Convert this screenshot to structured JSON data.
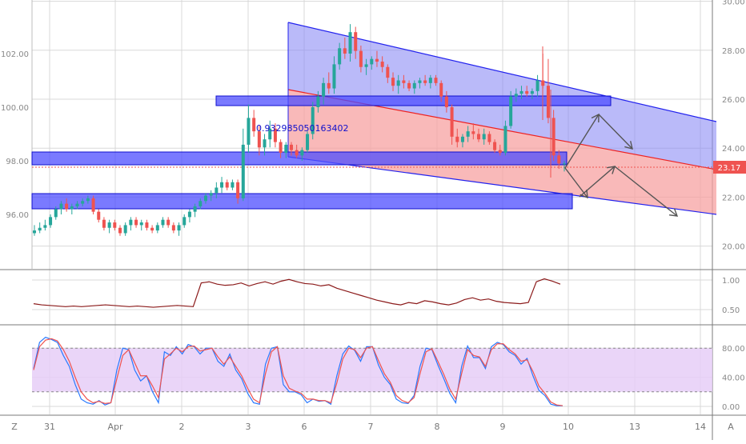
{
  "chart_data": [
    {
      "type": "candlestick",
      "title": "",
      "x_tick_labels": [
        "31",
        "Apr",
        "2",
        "3",
        "6",
        "7",
        "8",
        "9",
        "10",
        "13",
        "14"
      ],
      "left_axis": {
        "ticks": [
          "96.00",
          "98.00",
          "100.00",
          "102.00"
        ],
        "range": [
          94.0,
          104.0
        ]
      },
      "right_axis": {
        "ticks": [
          "20.00",
          "22.00",
          "24.00",
          "26.00",
          "28.00",
          "30.00"
        ],
        "range": [
          19.6,
          30.0
        ]
      },
      "last_price_label": "23.17",
      "annotation_text": "0.932985050163402",
      "colors": {
        "up": "#26a69a",
        "down": "#ef5350",
        "channel_upper": "#8c8cf5",
        "channel_lower": "#f7a1a1",
        "zone": "#4d4dff",
        "arrow": "#555555"
      },
      "series_ohlc": [
        [
          95.3,
          95.2,
          95.6,
          95.4
        ],
        [
          95.4,
          95.3,
          95.7,
          95.5
        ],
        [
          95.5,
          95.4,
          95.8,
          95.6
        ],
        [
          95.6,
          95.5,
          96.0,
          95.9
        ],
        [
          95.9,
          95.8,
          96.3,
          96.2
        ],
        [
          96.2,
          96.0,
          96.5,
          96.4
        ],
        [
          96.4,
          96.1,
          96.6,
          96.2
        ],
        [
          96.2,
          96.0,
          96.4,
          96.3
        ],
        [
          96.3,
          96.2,
          96.5,
          96.4
        ],
        [
          96.4,
          96.3,
          96.6,
          96.5
        ],
        [
          96.5,
          96.4,
          96.7,
          96.6
        ],
        [
          96.6,
          96.0,
          96.7,
          96.1
        ],
        [
          96.1,
          95.7,
          96.2,
          95.8
        ],
        [
          95.8,
          95.4,
          95.9,
          95.5
        ],
        [
          95.5,
          95.3,
          95.8,
          95.7
        ],
        [
          95.7,
          95.4,
          95.8,
          95.5
        ],
        [
          95.5,
          95.2,
          95.6,
          95.3
        ],
        [
          95.3,
          95.2,
          95.7,
          95.6
        ],
        [
          95.6,
          95.4,
          95.9,
          95.8
        ],
        [
          95.8,
          95.5,
          95.9,
          95.6
        ],
        [
          95.6,
          95.4,
          95.8,
          95.7
        ],
        [
          95.7,
          95.4,
          95.8,
          95.5
        ],
        [
          95.5,
          95.3,
          95.6,
          95.4
        ],
        [
          95.4,
          95.3,
          95.7,
          95.6
        ],
        [
          95.6,
          95.5,
          95.9,
          95.8
        ],
        [
          95.8,
          95.5,
          95.9,
          95.6
        ],
        [
          95.6,
          95.3,
          95.7,
          95.4
        ],
        [
          95.4,
          95.2,
          95.7,
          95.6
        ],
        [
          95.6,
          95.5,
          96.0,
          95.9
        ],
        [
          95.9,
          95.7,
          96.2,
          96.1
        ],
        [
          96.1,
          95.9,
          96.4,
          96.3
        ],
        [
          96.3,
          96.2,
          96.6,
          96.5
        ],
        [
          96.5,
          96.4,
          96.8,
          96.7
        ],
        [
          96.7,
          96.5,
          96.9,
          96.8
        ],
        [
          96.8,
          96.6,
          97.2,
          97.0
        ],
        [
          97.0,
          96.8,
          97.4,
          97.2
        ],
        [
          97.2,
          96.9,
          97.3,
          97.0
        ],
        [
          97.0,
          96.9,
          97.3,
          97.2
        ],
        [
          97.2,
          96.4,
          97.3,
          96.6
        ],
        [
          96.6,
          96.5,
          99.2,
          98.6
        ],
        [
          98.6,
          98.3,
          100.1,
          99.6
        ],
        [
          99.6,
          98.9,
          99.9,
          99.1
        ],
        [
          99.1,
          98.2,
          99.3,
          98.5
        ],
        [
          98.5,
          98.2,
          99.0,
          98.8
        ],
        [
          98.8,
          98.5,
          99.5,
          99.2
        ],
        [
          99.2,
          98.5,
          99.4,
          98.7
        ],
        [
          98.7,
          98.1,
          98.8,
          98.3
        ],
        [
          98.3,
          98.1,
          98.7,
          98.6
        ],
        [
          98.6,
          98.2,
          98.7,
          98.4
        ],
        [
          98.4,
          98.1,
          98.6,
          98.2
        ],
        [
          98.2,
          98.0,
          98.5,
          98.4
        ],
        [
          98.4,
          98.3,
          99.1,
          99.0
        ],
        [
          99.0,
          98.8,
          100.2,
          100.0
        ],
        [
          100.0,
          99.8,
          100.6,
          100.4
        ],
        [
          100.4,
          100.1,
          101.1,
          100.9
        ],
        [
          100.9,
          100.5,
          101.3,
          100.7
        ],
        [
          100.7,
          100.5,
          101.9,
          101.6
        ],
        [
          101.6,
          101.4,
          102.4,
          102.2
        ],
        [
          102.2,
          101.8,
          102.6,
          102.0
        ],
        [
          102.0,
          101.7,
          103.1,
          102.8
        ],
        [
          102.8,
          101.8,
          103.0,
          102.1
        ],
        [
          102.1,
          101.3,
          102.3,
          101.5
        ],
        [
          101.5,
          101.2,
          101.8,
          101.6
        ],
        [
          101.6,
          101.4,
          101.9,
          101.8
        ],
        [
          101.8,
          101.5,
          102.1,
          101.7
        ],
        [
          101.7,
          101.3,
          101.9,
          101.5
        ],
        [
          101.5,
          100.9,
          101.6,
          101.1
        ],
        [
          101.1,
          100.6,
          101.3,
          100.8
        ],
        [
          100.8,
          100.5,
          101.2,
          101.0
        ],
        [
          101.0,
          100.7,
          101.2,
          100.9
        ],
        [
          100.9,
          100.6,
          101.0,
          100.7
        ],
        [
          100.7,
          100.5,
          101.0,
          100.9
        ],
        [
          100.9,
          100.7,
          101.1,
          101.0
        ],
        [
          101.0,
          100.8,
          101.2,
          100.9
        ],
        [
          100.9,
          100.7,
          101.2,
          101.1
        ],
        [
          101.1,
          100.8,
          101.2,
          100.9
        ],
        [
          100.9,
          100.2,
          101.0,
          100.4
        ],
        [
          100.4,
          99.8,
          100.6,
          100.0
        ],
        [
          100.0,
          98.6,
          100.1,
          98.9
        ],
        [
          98.9,
          98.5,
          99.2,
          98.7
        ],
        [
          98.7,
          98.5,
          99.0,
          98.9
        ],
        [
          98.9,
          98.7,
          99.3,
          99.1
        ],
        [
          99.1,
          98.8,
          99.4,
          99.0
        ],
        [
          99.0,
          98.7,
          99.2,
          98.8
        ],
        [
          98.8,
          98.6,
          99.2,
          99.0
        ],
        [
          99.0,
          98.6,
          99.1,
          98.7
        ],
        [
          98.7,
          98.3,
          98.8,
          98.4
        ],
        [
          98.4,
          98.2,
          98.6,
          98.3
        ],
        [
          98.3,
          98.2,
          99.5,
          99.3
        ],
        [
          99.3,
          99.2,
          100.6,
          100.4
        ],
        [
          100.4,
          100.2,
          100.7,
          100.5
        ],
        [
          100.5,
          100.3,
          100.8,
          100.6
        ],
        [
          100.6,
          100.4,
          100.8,
          100.5
        ],
        [
          100.5,
          100.3,
          100.7,
          100.6
        ],
        [
          100.6,
          100.4,
          101.2,
          101.0
        ],
        [
          101.0,
          100.7,
          102.0,
          100.8
        ],
        [
          100.8,
          99.4,
          101.8,
          99.6
        ],
        [
          99.6,
          98.0,
          99.9,
          98.2
        ],
        [
          98.2,
          97.7,
          98.4,
          97.9
        ],
        [
          97.9,
          97.6,
          98.0,
          97.9
        ]
      ]
    },
    {
      "type": "line",
      "y_tick_labels": [
        "1.00",
        "0.50"
      ],
      "ylim": [
        0.3,
        1.1
      ],
      "series": [
        {
          "values": [
            0.6,
            0.58,
            0.57,
            0.56,
            0.55,
            0.56,
            0.55,
            0.56,
            0.57,
            0.58,
            0.57,
            0.56,
            0.55,
            0.56,
            0.55,
            0.54,
            0.55,
            0.56,
            0.57,
            0.56,
            0.55,
            0.95,
            0.97,
            0.93,
            0.91,
            0.92,
            0.95,
            0.9,
            0.94,
            0.97,
            0.93,
            0.98,
            1.01,
            0.97,
            0.94,
            0.93,
            0.9,
            0.92,
            0.86,
            0.82,
            0.78,
            0.74,
            0.7,
            0.66,
            0.63,
            0.6,
            0.58,
            0.62,
            0.6,
            0.65,
            0.63,
            0.6,
            0.58,
            0.61,
            0.67,
            0.7,
            0.66,
            0.68,
            0.64,
            0.62,
            0.61,
            0.6,
            0.62,
            0.97,
            1.02,
            0.98,
            0.93
          ]
        }
      ]
    },
    {
      "type": "line",
      "y_tick_labels": [
        "80.00",
        "40.00",
        "0.00"
      ],
      "ylim": [
        0,
        100
      ],
      "band": [
        20,
        80
      ],
      "series": [
        {
          "values": [
            52,
            88,
            95,
            92,
            88,
            70,
            55,
            30,
            10,
            5,
            3,
            8,
            2,
            5,
            50,
            80,
            78,
            50,
            35,
            42,
            20,
            5,
            75,
            70,
            82,
            72,
            85,
            82,
            72,
            80,
            80,
            62,
            55,
            72,
            50,
            38,
            18,
            5,
            3,
            58,
            80,
            82,
            30,
            20,
            20,
            16,
            5,
            10,
            7,
            8,
            3,
            42,
            72,
            83,
            77,
            62,
            82,
            82,
            57,
            40,
            30,
            10,
            5,
            4,
            15,
            55,
            80,
            78,
            57,
            38,
            18,
            5,
            55,
            83,
            67,
            67,
            52,
            82,
            88,
            85,
            75,
            70,
            58,
            66,
            42,
            22,
            15,
            3,
            1,
            1
          ]
        },
        {
          "values": [
            50,
            82,
            91,
            93,
            90,
            78,
            62,
            40,
            20,
            10,
            5,
            7,
            4,
            5,
            38,
            70,
            78,
            60,
            42,
            42,
            28,
            12,
            65,
            72,
            80,
            75,
            82,
            83,
            76,
            78,
            80,
            68,
            58,
            68,
            55,
            42,
            25,
            10,
            5,
            45,
            75,
            82,
            42,
            25,
            21,
            18,
            10,
            10,
            8,
            8,
            5,
            32,
            65,
            80,
            78,
            67,
            80,
            82,
            63,
            45,
            33,
            15,
            8,
            5,
            12,
            45,
            75,
            79,
            62,
            44,
            24,
            10,
            45,
            78,
            70,
            68,
            55,
            78,
            86,
            86,
            78,
            72,
            62,
            64,
            48,
            28,
            18,
            6,
            2,
            1
          ]
        }
      ]
    }
  ]
}
